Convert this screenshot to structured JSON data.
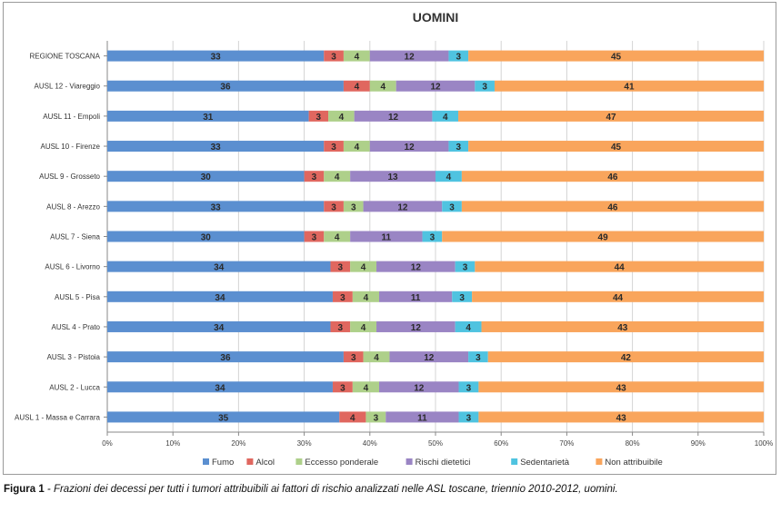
{
  "chart_data": {
    "type": "bar",
    "orientation": "horizontal",
    "stacked": "percent",
    "title": "UOMINI",
    "categories": [
      "REGIONE TOSCANA",
      "AUSL 12 - Viareggio",
      "AUSL 11 - Empoli",
      "AUSL 10 - Firenze",
      "AUSL 9 - Grosseto",
      "AUSL 8 - Arezzo",
      "AUSL 7 - Siena",
      "AUSL 6 - Livorno",
      "AUSL 5 - Pisa",
      "AUSL 4 - Prato",
      "AUSL 3 - Pistoia",
      "AUSL 2 - Lucca",
      "AUSL 1 - Massa e Carrara"
    ],
    "series": [
      {
        "name": "Fumo",
        "color": "#5b8fd0",
        "values": [
          33,
          36,
          31,
          33,
          30,
          33,
          30,
          34,
          34,
          34,
          36,
          34,
          35
        ]
      },
      {
        "name": "Alcol",
        "color": "#e0675f",
        "values": [
          3,
          4,
          3,
          3,
          3,
          3,
          3,
          3,
          3,
          3,
          3,
          3,
          4
        ]
      },
      {
        "name": "Eccesso ponderale",
        "color": "#aed08a",
        "values": [
          4,
          4,
          4,
          4,
          4,
          3,
          4,
          4,
          4,
          4,
          4,
          4,
          3
        ]
      },
      {
        "name": "Rischi dietetici",
        "color": "#9a85c4",
        "values": [
          12,
          12,
          12,
          12,
          13,
          12,
          11,
          12,
          11,
          12,
          12,
          12,
          11
        ]
      },
      {
        "name": "Sedentarietà",
        "color": "#4fc3e0",
        "values": [
          3,
          3,
          4,
          3,
          4,
          3,
          3,
          3,
          3,
          4,
          3,
          3,
          3
        ]
      },
      {
        "name": "Non attribuibile",
        "color": "#f9a55c",
        "values": [
          45,
          41,
          47,
          45,
          46,
          46,
          49,
          44,
          44,
          43,
          42,
          43,
          43
        ]
      }
    ],
    "x_ticks": [
      "0%",
      "10%",
      "20%",
      "30%",
      "40%",
      "50%",
      "60%",
      "70%",
      "80%",
      "90%",
      "100%"
    ],
    "xlim": [
      0,
      100
    ],
    "grid": true,
    "legend": "bottom"
  },
  "caption": {
    "label": "Figura 1",
    "text": " - Frazioni dei decessi per tutti i tumori attribuibili ai fattori di rischio analizzati nelle ASL toscane, triennio 2010-2012, uomini."
  }
}
